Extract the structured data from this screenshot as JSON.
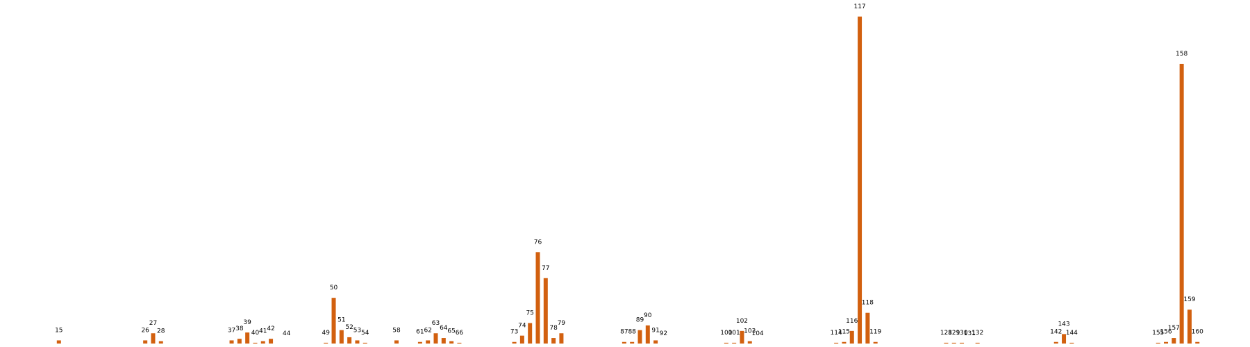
{
  "chart_data": {
    "type": "bar",
    "color": "#d2600f",
    "x": [
      15,
      26,
      27,
      28,
      37,
      38,
      39,
      40,
      41,
      42,
      44,
      49,
      50,
      51,
      52,
      53,
      54,
      58,
      61,
      62,
      63,
      64,
      65,
      66,
      73,
      74,
      75,
      76,
      77,
      78,
      79,
      87,
      88,
      89,
      90,
      91,
      92,
      100,
      101,
      102,
      103,
      104,
      114,
      115,
      116,
      117,
      118,
      119,
      128,
      129,
      130,
      131,
      132,
      142,
      143,
      144,
      155,
      156,
      157,
      158,
      159,
      160
    ],
    "values": [
      4,
      4,
      13,
      3,
      4,
      6,
      14,
      1,
      3,
      6,
      0,
      1,
      58,
      17,
      8,
      4,
      1,
      4,
      2,
      4,
      13,
      7,
      3,
      1,
      2,
      10,
      26,
      116,
      83,
      7,
      13,
      2,
      2,
      17,
      23,
      4,
      0,
      1,
      1,
      16,
      3,
      0,
      1,
      2,
      16,
      415,
      39,
      2,
      1,
      1,
      1,
      0,
      1,
      2,
      12,
      1,
      1,
      2,
      7,
      355,
      43,
      2
    ],
    "xlim": [
      7.5,
      166.7
    ],
    "ylim": [
      0,
      436
    ]
  }
}
